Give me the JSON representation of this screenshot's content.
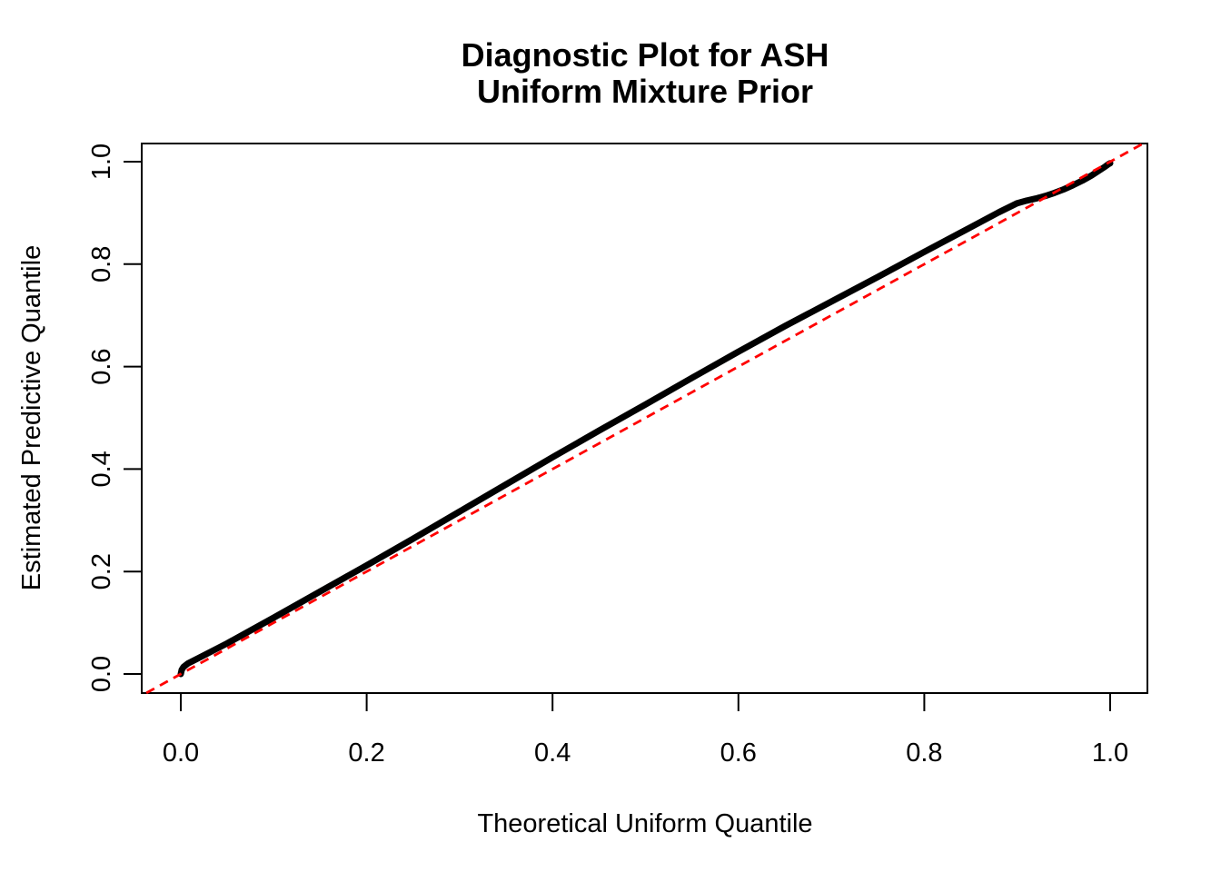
{
  "title": {
    "line1": "Diagnostic Plot for ASH",
    "line2": "Uniform Mixture Prior"
  },
  "axes": {
    "x_label": "Theoretical Uniform Quantile",
    "y_label": "Estimated Predictive Quantile"
  },
  "colors": {
    "background": "#FFFFFF",
    "foreground": "#000000",
    "reference_line": "#FF0000"
  },
  "chart_data": {
    "type": "scatter",
    "subtype": "qq-plot",
    "title": "Diagnostic Plot for ASH",
    "subtitle": "Uniform Mixture Prior",
    "xlabel": "Theoretical Uniform Quantile",
    "ylabel": "Estimated Predictive Quantile",
    "xlim": [
      -0.04,
      1.04
    ],
    "ylim": [
      -0.04,
      1.04
    ],
    "grid": false,
    "legend": "none",
    "x_ticks": {
      "values": [
        0.0,
        0.2,
        0.4,
        0.6,
        0.8,
        1.0
      ],
      "labels": [
        "0.0",
        "0.2",
        "0.4",
        "0.6",
        "0.8",
        "1.0"
      ]
    },
    "y_ticks": {
      "values": [
        0.0,
        0.2,
        0.4,
        0.6,
        0.8,
        1.0
      ],
      "labels": [
        "0.0",
        "0.2",
        "0.4",
        "0.6",
        "0.8",
        "1.0"
      ]
    },
    "series": [
      {
        "name": "estimated-predictive-quantiles",
        "style": "thick-point-line",
        "color": "#000000",
        "points": [
          [
            0.0,
            0.0
          ],
          [
            0.001,
            0.008
          ],
          [
            0.003,
            0.014
          ],
          [
            0.008,
            0.021
          ],
          [
            0.02,
            0.032
          ],
          [
            0.05,
            0.06
          ],
          [
            0.1,
            0.11
          ],
          [
            0.15,
            0.161
          ],
          [
            0.2,
            0.212
          ],
          [
            0.25,
            0.264
          ],
          [
            0.3,
            0.317
          ],
          [
            0.35,
            0.37
          ],
          [
            0.4,
            0.423
          ],
          [
            0.45,
            0.475
          ],
          [
            0.5,
            0.526
          ],
          [
            0.55,
            0.578
          ],
          [
            0.6,
            0.629
          ],
          [
            0.65,
            0.679
          ],
          [
            0.7,
            0.727
          ],
          [
            0.75,
            0.775
          ],
          [
            0.8,
            0.824
          ],
          [
            0.85,
            0.872
          ],
          [
            0.88,
            0.901
          ],
          [
            0.9,
            0.919
          ],
          [
            0.91,
            0.924
          ],
          [
            0.92,
            0.928
          ],
          [
            0.93,
            0.933
          ],
          [
            0.94,
            0.939
          ],
          [
            0.95,
            0.946
          ],
          [
            0.96,
            0.954
          ],
          [
            0.97,
            0.963
          ],
          [
            0.98,
            0.973
          ],
          [
            0.99,
            0.985
          ],
          [
            0.995,
            0.991
          ],
          [
            0.998,
            0.995
          ],
          [
            1.0,
            0.997
          ]
        ]
      },
      {
        "name": "reference-line-y-equals-x",
        "style": "dashed-line",
        "color": "#FF0000",
        "points": [
          [
            -0.037,
            -0.037
          ],
          [
            1.035,
            1.035
          ]
        ]
      }
    ]
  }
}
